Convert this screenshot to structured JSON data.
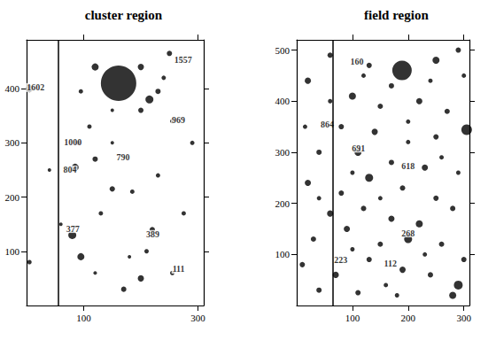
{
  "chart_data": [
    {
      "type": "scatter",
      "title": "cluster region",
      "color": "#000000",
      "marker": "circle",
      "grid": false,
      "xlim": [
        0,
        310
      ],
      "ylim": [
        0,
        490
      ],
      "xticks": [
        100,
        300
      ],
      "yticks": [
        100,
        200,
        300,
        400
      ],
      "x": [
        161,
        120,
        200,
        215,
        240,
        250,
        270,
        230,
        95,
        5,
        110,
        150,
        200,
        255,
        90,
        85,
        120,
        150,
        185,
        230,
        80,
        95,
        210,
        220,
        255,
        200,
        170,
        130,
        60,
        275,
        290,
        40,
        150,
        180,
        5,
        120
      ],
      "y": [
        410,
        440,
        440,
        380,
        420,
        465,
        455,
        395,
        395,
        400,
        330,
        360,
        360,
        340,
        300,
        255,
        270,
        215,
        210,
        240,
        130,
        90,
        100,
        140,
        60,
        50,
        30,
        170,
        150,
        170,
        300,
        250,
        300,
        90,
        80,
        60
      ],
      "sizes": [
        40,
        8,
        7,
        9,
        5,
        6,
        5,
        6,
        5,
        8,
        5,
        4,
        6,
        5,
        5,
        8,
        6,
        6,
        5,
        5,
        9,
        8,
        5,
        6,
        5,
        7,
        6,
        5,
        4,
        5,
        5,
        4,
        4,
        4,
        5,
        4
      ],
      "vertical_line_x": 55,
      "annotations": [
        {
          "text": "1602",
          "x": 16,
          "y": 402
        },
        {
          "text": "1557",
          "x": 274,
          "y": 453
        },
        {
          "text": "969",
          "x": 266,
          "y": 342
        },
        {
          "text": "1000",
          "x": 81,
          "y": 302
        },
        {
          "text": "790",
          "x": 169,
          "y": 273
        },
        {
          "text": "804",
          "x": 76,
          "y": 250
        },
        {
          "text": "377",
          "x": 81,
          "y": 142
        },
        {
          "text": "389",
          "x": 221,
          "y": 131
        },
        {
          "text": "111",
          "x": 266,
          "y": 67
        }
      ]
    },
    {
      "type": "scatter",
      "title": "field region",
      "color": "#000000",
      "marker": "circle",
      "grid": false,
      "xlim": [
        0,
        310
      ],
      "ylim": [
        0,
        520
      ],
      "xticks": [
        100,
        200,
        300
      ],
      "yticks": [
        100,
        200,
        300,
        400,
        500
      ],
      "x": [
        189,
        305,
        250,
        290,
        130,
        60,
        20,
        100,
        150,
        220,
        270,
        80,
        140,
        200,
        250,
        40,
        110,
        170,
        230,
        290,
        20,
        80,
        130,
        190,
        250,
        60,
        120,
        170,
        220,
        280,
        30,
        90,
        150,
        200,
        260,
        10,
        70,
        130,
        190,
        240,
        290,
        280,
        40,
        110,
        160,
        230,
        300,
        15,
        170,
        240,
        60,
        120,
        300,
        200,
        100,
        260,
        40,
        150,
        100,
        180
      ],
      "y": [
        460,
        344,
        480,
        500,
        470,
        490,
        440,
        410,
        390,
        400,
        380,
        350,
        340,
        320,
        330,
        300,
        300,
        280,
        270,
        260,
        240,
        220,
        250,
        230,
        210,
        180,
        190,
        170,
        160,
        190,
        130,
        150,
        120,
        130,
        120,
        80,
        60,
        90,
        70,
        60,
        40,
        20,
        30,
        25,
        40,
        100,
        90,
        350,
        430,
        440,
        400,
        450,
        450,
        360,
        260,
        290,
        210,
        210,
        110,
        20
      ],
      "sizes": [
        22,
        12,
        8,
        6,
        6,
        6,
        7,
        8,
        6,
        7,
        6,
        6,
        7,
        5,
        6,
        6,
        8,
        6,
        7,
        5,
        7,
        6,
        9,
        6,
        6,
        7,
        6,
        7,
        8,
        6,
        6,
        7,
        6,
        9,
        6,
        6,
        7,
        6,
        7,
        6,
        10,
        8,
        6,
        6,
        5,
        5,
        6,
        5,
        6,
        5,
        5,
        5,
        5,
        5,
        5,
        5,
        5,
        5,
        5,
        5
      ],
      "vertical_line_x": 65,
      "annotations": [
        {
          "text": "160",
          "x": 108,
          "y": 477
        },
        {
          "text": "864",
          "x": 55,
          "y": 355
        },
        {
          "text": "691",
          "x": 111,
          "y": 308
        },
        {
          "text": "618",
          "x": 200,
          "y": 273
        },
        {
          "text": "268",
          "x": 200,
          "y": 142
        },
        {
          "text": "223",
          "x": 79,
          "y": 90
        },
        {
          "text": "112",
          "x": 168,
          "y": 82
        }
      ]
    }
  ]
}
